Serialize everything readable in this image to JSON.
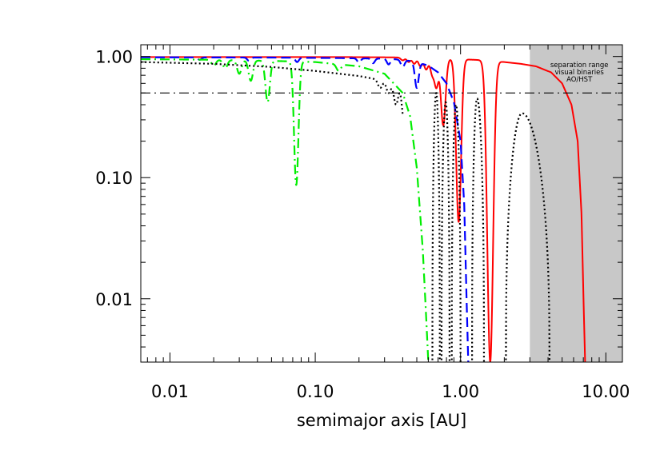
{
  "chart_data": {
    "type": "line",
    "xscale": "log",
    "yscale": "log",
    "xlim": [
      0.0063,
      13.0
    ],
    "ylim": [
      0.003,
      1.25
    ],
    "xlabel": "semimajor axis [AU]",
    "ylabel": "",
    "title": "",
    "grid": false,
    "x_ticks": [
      {
        "value": 0.01,
        "label": "0.01"
      },
      {
        "value": 0.1,
        "label": "0.10"
      },
      {
        "value": 1.0,
        "label": "1.00"
      },
      {
        "value": 10.0,
        "label": "10.00"
      }
    ],
    "y_ticks": [
      {
        "value": 0.01,
        "label": "0.01"
      },
      {
        "value": 0.1,
        "label": "0.10"
      },
      {
        "value": 1.0,
        "label": "1.00"
      }
    ],
    "shaded_region": {
      "x_from": 3.0,
      "x_to": 13.0,
      "color": "#c8c8c8",
      "label_lines": [
        "separation range",
        "visual binaries",
        "AO/HST"
      ]
    },
    "reference_line": {
      "y": 0.5,
      "style": "dash-dot",
      "color": "#000000"
    },
    "series": [
      {
        "style": "solid",
        "color": "#ff0000",
        "baseline": {
          "x": [
            0.0063,
            0.05,
            0.15,
            0.3,
            0.45,
            0.6,
            1.0,
            1.5,
            2.0,
            2.6,
            3.3,
            4.2,
            5.0,
            5.8,
            6.4,
            6.8,
            7.05,
            7.2
          ],
          "y": [
            0.99,
            0.99,
            0.99,
            0.985,
            0.98,
            0.97,
            0.95,
            0.93,
            0.9,
            0.87,
            0.83,
            0.74,
            0.6,
            0.4,
            0.2,
            0.05,
            0.008,
            0.003
          ]
        },
        "dips": [
          {
            "x": 0.4,
            "y": 0.93,
            "w": 0.013
          },
          {
            "x": 0.44,
            "y": 0.9,
            "w": 0.013
          },
          {
            "x": 0.48,
            "y": 0.87,
            "w": 0.013
          },
          {
            "x": 0.53,
            "y": 0.83,
            "w": 0.014
          },
          {
            "x": 0.58,
            "y": 0.78,
            "w": 0.014
          },
          {
            "x": 0.64,
            "y": 0.72,
            "w": 0.015
          },
          {
            "x": 0.68,
            "y": 0.55,
            "w": 0.015
          },
          {
            "x": 0.76,
            "y": 0.27,
            "w": 0.016
          },
          {
            "x": 0.97,
            "y": 0.043,
            "w": 0.017
          },
          {
            "x": 1.6,
            "y": 0.003,
            "w": 0.02
          }
        ]
      },
      {
        "style": "dashed",
        "color": "#0000ff",
        "baseline": {
          "x": [
            0.0063,
            0.05,
            0.15,
            0.3,
            0.4,
            0.5,
            0.6,
            0.7,
            0.8,
            0.9,
            1.0,
            1.06,
            1.1,
            1.13
          ],
          "y": [
            0.985,
            0.98,
            0.97,
            0.96,
            0.94,
            0.9,
            0.84,
            0.74,
            0.6,
            0.42,
            0.2,
            0.06,
            0.01,
            0.003
          ]
        },
        "dips": [
          {
            "x": 0.016,
            "y": 0.94,
            "w": 0.012
          },
          {
            "x": 0.035,
            "y": 0.92,
            "w": 0.012
          },
          {
            "x": 0.075,
            "y": 0.9,
            "w": 0.012
          },
          {
            "x": 0.2,
            "y": 0.89,
            "w": 0.012
          },
          {
            "x": 0.25,
            "y": 0.88,
            "w": 0.012
          },
          {
            "x": 0.32,
            "y": 0.86,
            "w": 0.012
          },
          {
            "x": 0.4,
            "y": 0.82,
            "w": 0.013
          },
          {
            "x": 0.5,
            "y": 0.55,
            "w": 0.013
          }
        ]
      },
      {
        "style": "dash-dot",
        "color": "#00ee00",
        "baseline": {
          "x": [
            0.0063,
            0.02,
            0.05,
            0.1,
            0.2,
            0.3,
            0.4,
            0.45,
            0.5,
            0.55,
            0.58,
            0.6
          ],
          "y": [
            0.95,
            0.94,
            0.92,
            0.9,
            0.83,
            0.72,
            0.5,
            0.32,
            0.12,
            0.025,
            0.007,
            0.003
          ]
        },
        "dips": [
          {
            "x": 0.02,
            "y": 0.84,
            "w": 0.015
          },
          {
            "x": 0.024,
            "y": 0.8,
            "w": 0.015
          },
          {
            "x": 0.03,
            "y": 0.72,
            "w": 0.015
          },
          {
            "x": 0.036,
            "y": 0.63,
            "w": 0.015
          },
          {
            "x": 0.047,
            "y": 0.42,
            "w": 0.015
          },
          {
            "x": 0.074,
            "y": 0.087,
            "w": 0.015
          },
          {
            "x": 0.145,
            "y": 0.76,
            "w": 0.015
          }
        ]
      },
      {
        "style": "dotted",
        "color": "#000000",
        "baseline": {
          "x": [
            0.0063,
            0.02,
            0.05,
            0.1,
            0.2,
            0.3,
            0.4
          ],
          "y": [
            0.9,
            0.87,
            0.82,
            0.76,
            0.69,
            0.63,
            0.58
          ]
        },
        "dips": [
          {
            "x": 0.28,
            "y": 0.55,
            "w": 0.015
          },
          {
            "x": 0.32,
            "y": 0.5,
            "w": 0.015
          },
          {
            "x": 0.36,
            "y": 0.4,
            "w": 0.015
          },
          {
            "x": 0.41,
            "y": 0.28,
            "w": 0.015
          },
          {
            "x": 0.47,
            "y": 0.13,
            "w": 0.015
          },
          {
            "x": 0.53,
            "y": 0.055,
            "w": 0.015
          },
          {
            "x": 0.6,
            "y": 0.03,
            "w": 0.015
          }
        ],
        "lobes": [
          {
            "x_from": 0.64,
            "x_to": 0.72,
            "peak_x": 0.68,
            "peak_y": 0.5
          },
          {
            "x_from": 0.74,
            "x_to": 0.84,
            "peak_x": 0.79,
            "peak_y": 0.42
          },
          {
            "x_from": 0.87,
            "x_to": 1.0,
            "peak_x": 0.93,
            "peak_y": 0.4
          },
          {
            "x_from": 1.2,
            "x_to": 1.45,
            "peak_x": 1.3,
            "peak_y": 0.45
          },
          {
            "x_from": 2.05,
            "x_to": 4.1,
            "peak_x": 2.65,
            "peak_y": 0.34
          }
        ]
      }
    ]
  }
}
